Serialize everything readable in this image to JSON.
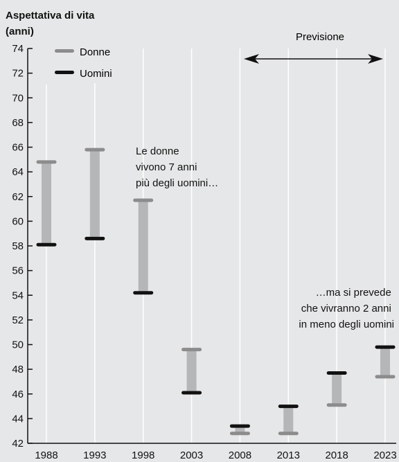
{
  "chart_data": {
    "type": "range-bar",
    "ylabel_line1": "Aspettativa di vita",
    "ylabel_line2": "(anni)",
    "categories": [
      "1988",
      "1993",
      "1998",
      "2003",
      "2008",
      "2013",
      "2018",
      "2023"
    ],
    "yticks": [
      "42",
      "44",
      "46",
      "48",
      "50",
      "52",
      "54",
      "56",
      "58",
      "60",
      "62",
      "64",
      "66",
      "68",
      "70",
      "72",
      "74"
    ],
    "ylim": [
      42,
      74
    ],
    "grid": true,
    "series": [
      {
        "name": "Donne",
        "color": "#8c8c8c",
        "values": [
          64.8,
          65.8,
          61.7,
          49.6,
          42.8,
          42.8,
          45.1,
          47.4
        ]
      },
      {
        "name": "Uomini",
        "color": "#111111",
        "values": [
          58.1,
          58.6,
          54.2,
          46.1,
          43.4,
          45.0,
          47.7,
          49.8
        ]
      }
    ],
    "range_bar_color": "#b5b6b8",
    "forecast": {
      "label": "Previsione",
      "from": "2008",
      "to": "2023"
    },
    "annotations": [
      {
        "lines": [
          "Le donne",
          "vivono 7 anni",
          "più degli uomini…"
        ]
      },
      {
        "lines": [
          "…ma si prevede",
          "che vivranno 2 anni",
          "in meno degli uomini"
        ]
      }
    ]
  }
}
